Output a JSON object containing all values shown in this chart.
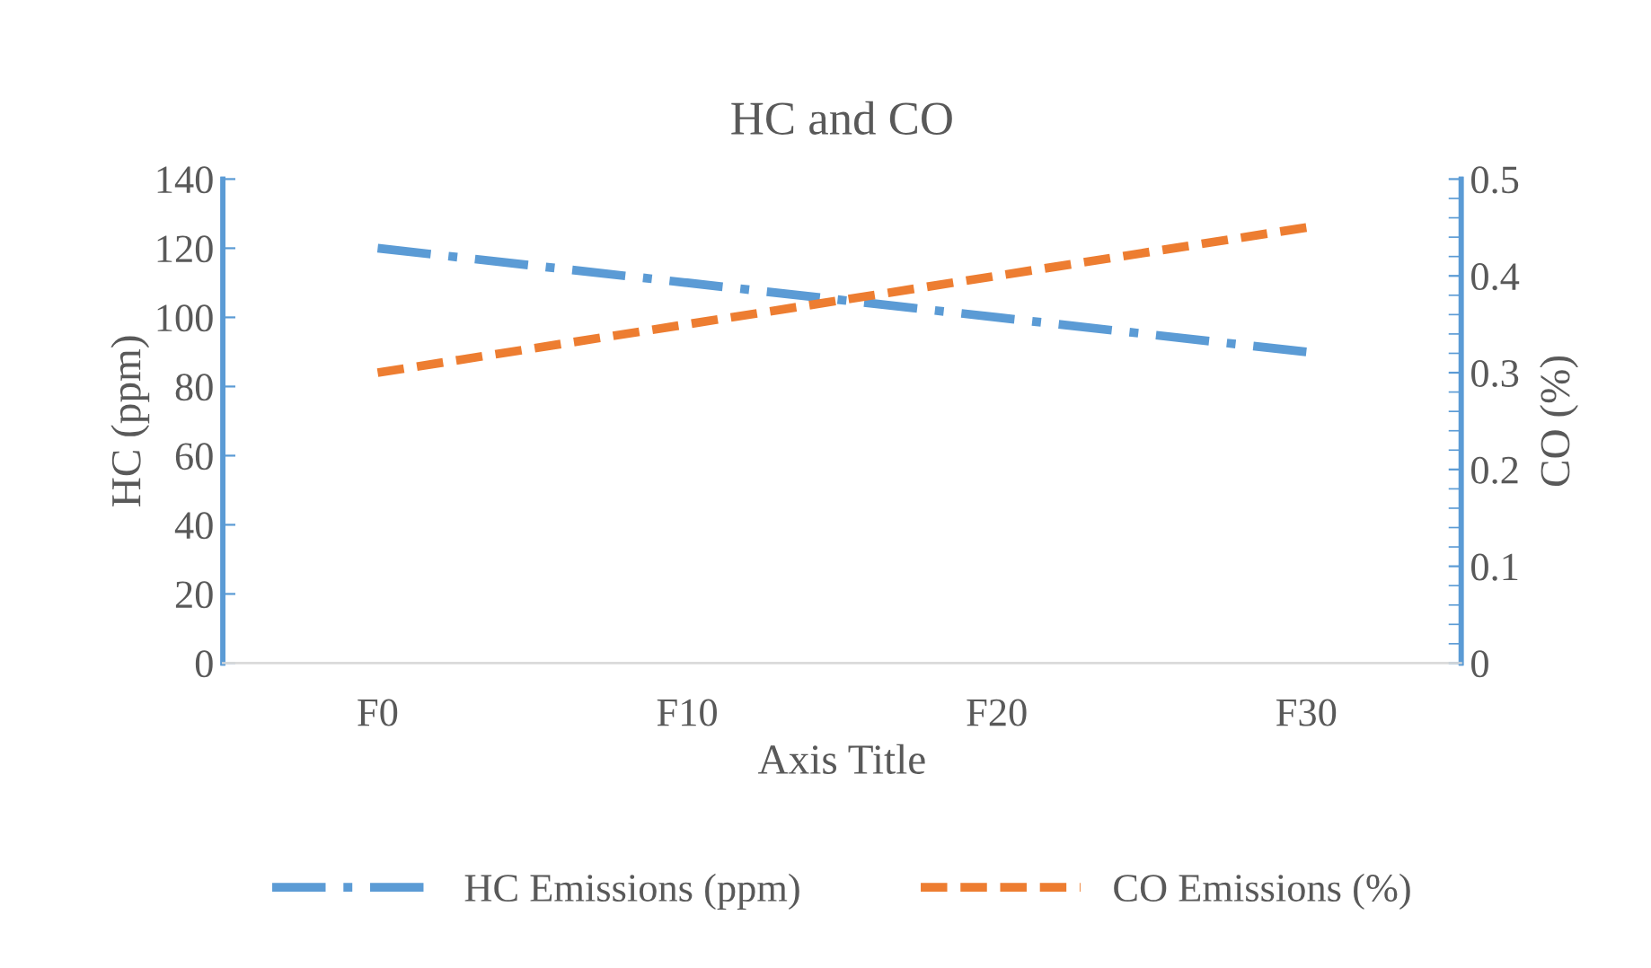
{
  "chart_data": {
    "type": "line",
    "title": "HC and CO",
    "xlabel": "Axis Title",
    "ylabel": "HC (ppm)",
    "y2label": "CO (%)",
    "categories": [
      "F0",
      "F10",
      "F20",
      "F30"
    ],
    "series": [
      {
        "name": "HC Emissions (ppm)",
        "color": "#5b9bd5",
        "values": [
          120,
          110,
          100,
          90
        ],
        "line_style": "dashdot"
      },
      {
        "name": "CO Emissions (%)",
        "color": "#ed7d31",
        "values": [
          0.3,
          0.35,
          0.4,
          0.45
        ],
        "axis": "y2",
        "line_style": "dashed"
      }
    ],
    "ylim": [
      0,
      140
    ],
    "yticks": [
      0,
      20,
      40,
      60,
      80,
      100,
      120,
      140
    ],
    "y2lim": [
      0,
      0.5
    ],
    "y2ticks": [
      0,
      0.1,
      0.2,
      0.3,
      0.4,
      0.5
    ],
    "grid": false,
    "legend": "bottom",
    "marker": "none"
  }
}
